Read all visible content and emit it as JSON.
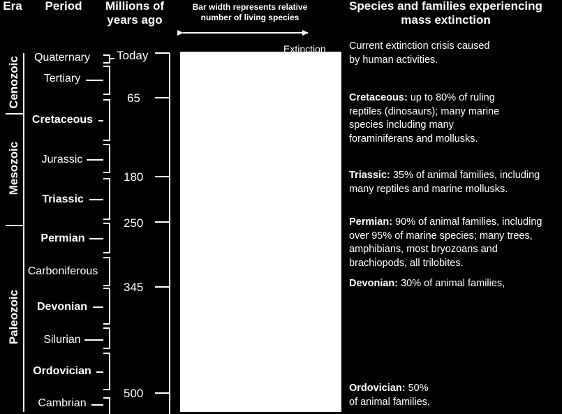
{
  "headers": {
    "era": "Era",
    "period": "Period",
    "time_line1": "Millions of",
    "time_line2": "years ago",
    "bar_line1": "Bar width represents relative",
    "bar_line2": "number of living species",
    "species_line1": "Species and families experiencing",
    "species_line2": "mass extinction"
  },
  "extinction_label": "Extinction",
  "eras": [
    "Cenozoic",
    "Mesozoic",
    "Paleozoic"
  ],
  "periods": [
    {
      "name": "Quaternary",
      "bold": false
    },
    {
      "name": "Tertiary",
      "bold": false
    },
    {
      "name": "Cretaceous",
      "bold": true
    },
    {
      "name": "Jurassic",
      "bold": false
    },
    {
      "name": "Triassic",
      "bold": true
    },
    {
      "name": "Permian",
      "bold": true
    },
    {
      "name": "Carboniferous",
      "bold": false
    },
    {
      "name": "Devonian",
      "bold": true
    },
    {
      "name": "Silurian",
      "bold": false
    },
    {
      "name": "Ordovician",
      "bold": true
    },
    {
      "name": "Cambrian",
      "bold": false
    }
  ],
  "times": [
    "Today",
    "65",
    "180",
    "250",
    "345",
    "500"
  ],
  "extinctions": [
    {
      "title": "",
      "lines": [
        "Current extinction crisis caused",
        "by human activities."
      ]
    },
    {
      "title": "Cretaceous:",
      "lines": [
        " up to 80% of ruling",
        "reptiles (dinosaurs); many marine",
        "species including many",
        "foraminiferans and mollusks."
      ]
    },
    {
      "title": "Triassic:",
      "lines": [
        " 35% of animal families, including",
        "many reptiles and marine mollusks."
      ]
    },
    {
      "title": "Permian:",
      "lines": [
        " 90% of animal families, including",
        "over 95% of marine species; many trees,",
        "amphibians, most bryozoans and",
        "brachiopods, all trilobites."
      ]
    },
    {
      "title": "Devonian:",
      "lines": [
        " 30% of animal families,"
      ]
    },
    {
      "title": "Ordovician:",
      "lines": [
        " 50%",
        "of animal families,"
      ]
    }
  ]
}
